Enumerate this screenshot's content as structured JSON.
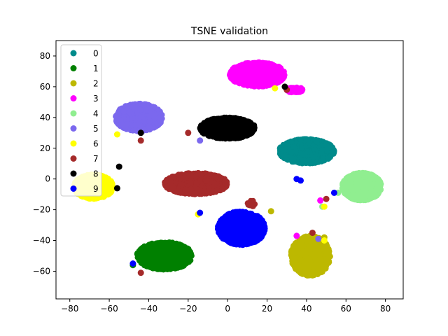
{
  "chart_data": {
    "type": "scatter",
    "title": "TSNE validation",
    "xlabel": "",
    "ylabel": "",
    "xlim": [
      -87,
      89
    ],
    "ylim": [
      -78,
      90
    ],
    "xticks": [
      -80,
      -60,
      -40,
      -20,
      0,
      20,
      40,
      60,
      80
    ],
    "yticks": [
      -60,
      -40,
      -20,
      0,
      20,
      40,
      60,
      80
    ],
    "grid": false,
    "legend_position": "upper-left",
    "series": [
      {
        "name": "0",
        "color": "#008b8b",
        "clusters": [
          [
            40,
            18,
            14,
            8,
            1200
          ]
        ],
        "outliers": []
      },
      {
        "name": "1",
        "color": "#008000",
        "clusters": [
          [
            -32,
            -50,
            14,
            9,
            1200
          ]
        ],
        "outliers": [
          [
            -48,
            -56
          ]
        ]
      },
      {
        "name": "2",
        "color": "#bdb800",
        "clusters": [
          [
            42,
            -50,
            10,
            13,
            1100
          ]
        ],
        "outliers": [
          [
            22,
            -21
          ],
          [
            49,
            -38
          ]
        ]
      },
      {
        "name": "3",
        "color": "#ff00ff",
        "clusters": [
          [
            15,
            68,
            14,
            8,
            1000
          ],
          [
            34,
            58,
            4,
            2,
            80
          ]
        ],
        "outliers": [
          [
            35,
            -37
          ],
          [
            47,
            -14
          ]
        ]
      },
      {
        "name": "4",
        "color": "#90ee90",
        "clusters": [
          [
            68,
            -5,
            10,
            9,
            1100
          ]
        ],
        "outliers": [
          [
            48,
            -18
          ],
          [
            56,
            -9
          ]
        ]
      },
      {
        "name": "5",
        "color": "#7b68ee",
        "clusters": [
          [
            -45,
            40,
            12,
            9,
            1000
          ]
        ],
        "outliers": [
          [
            46,
            -39
          ],
          [
            -14,
            25
          ]
        ]
      },
      {
        "name": "6",
        "color": "#ffff00",
        "clusters": [
          [
            -68,
            -5,
            10,
            8,
            1000
          ]
        ],
        "outliers": [
          [
            -56,
            29
          ],
          [
            24,
            59
          ],
          [
            49,
            -40
          ],
          [
            49,
            -18
          ],
          [
            -15,
            -23
          ]
        ]
      },
      {
        "name": "7",
        "color": "#a52a2a",
        "clusters": [
          [
            -16,
            -3,
            16,
            7,
            1100
          ],
          [
            12,
            -16,
            2,
            2,
            20
          ]
        ],
        "outliers": [
          [
            -44,
            25
          ],
          [
            -44,
            -61
          ],
          [
            43,
            -35
          ],
          [
            50,
            -13
          ],
          [
            30,
            58
          ],
          [
            -20,
            30
          ]
        ]
      },
      {
        "name": "8",
        "color": "#000000",
        "clusters": [
          [
            0,
            33,
            14,
            7,
            1300
          ]
        ],
        "outliers": [
          [
            -55,
            8
          ],
          [
            -56,
            -6
          ],
          [
            -44,
            30
          ],
          [
            29,
            60
          ]
        ]
      },
      {
        "name": "9",
        "color": "#0000ff",
        "clusters": [
          [
            7,
            -32,
            12,
            11,
            1200
          ]
        ],
        "outliers": [
          [
            -14,
            -22
          ],
          [
            -48,
            -55
          ],
          [
            35,
            0
          ],
          [
            37,
            -1
          ],
          [
            54,
            -9
          ]
        ]
      }
    ]
  }
}
